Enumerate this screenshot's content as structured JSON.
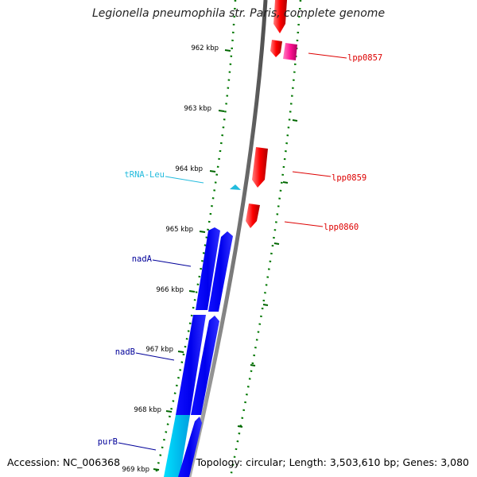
{
  "title": "Legionella pneumophila str. Paris, complete genome",
  "footer": {
    "accession": "Accession: NC_006368",
    "summary": "Topology: circular; Length: 3,503,610 bp; Genes: 3,080"
  },
  "ticks": [
    {
      "label": "962 kbp",
      "kbp": 962
    },
    {
      "label": "963 kbp",
      "kbp": 963
    },
    {
      "label": "964 kbp",
      "kbp": 964
    },
    {
      "label": "965 kbp",
      "kbp": 965
    },
    {
      "label": "966 kbp",
      "kbp": 966
    },
    {
      "label": "967 kbp",
      "kbp": 967
    },
    {
      "label": "968 kbp",
      "kbp": 968
    },
    {
      "label": "969 kbp",
      "kbp": 969
    }
  ],
  "gene_labels": [
    {
      "name": "lpp0857",
      "strand": "forward",
      "color": "#dd0000"
    },
    {
      "name": "lpp0859",
      "strand": "forward",
      "color": "#dd0000"
    },
    {
      "name": "lpp0860",
      "strand": "forward",
      "color": "#dd0000"
    },
    {
      "name": "tRNA-Leu",
      "strand": "reverse",
      "color": "#22bbdd"
    },
    {
      "name": "nadA",
      "strand": "reverse",
      "color": "#000099"
    },
    {
      "name": "nadB",
      "strand": "reverse",
      "color": "#000099"
    },
    {
      "name": "purB",
      "strand": "reverse",
      "color": "#000099"
    }
  ],
  "colors": {
    "forward_cds": "#ff0000",
    "forward_cds_alt": "#ff1493",
    "reverse_cds": "#0000ee",
    "reverse_cds_alt": "#00bfff",
    "trna": "#22bbdd",
    "backbone": "#888888",
    "tick": "#006600"
  }
}
